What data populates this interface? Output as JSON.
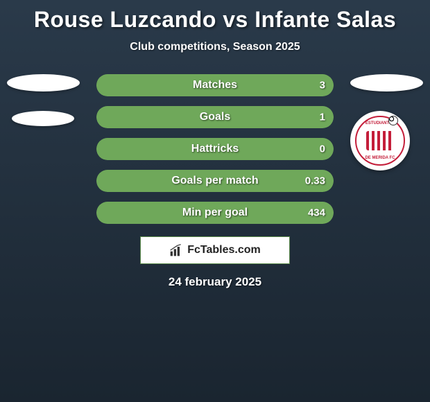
{
  "header": {
    "title": "Rouse Luzcando vs Infante Salas",
    "subtitle": "Club competitions, Season 2025"
  },
  "colors": {
    "bar_bg": "#5a8a4a",
    "bar_fill": "#6fa85a",
    "background_top": "#2a3a4a",
    "background_bottom": "#1a2530",
    "text": "#ffffff",
    "badge_red": "#c41e3a"
  },
  "stats": [
    {
      "label": "Matches",
      "right_value": "3",
      "fill_from": "left",
      "fill_pct": 100
    },
    {
      "label": "Goals",
      "right_value": "1",
      "fill_from": "left",
      "fill_pct": 100
    },
    {
      "label": "Hattricks",
      "right_value": "0",
      "fill_from": "left",
      "fill_pct": 100
    },
    {
      "label": "Goals per match",
      "right_value": "0.33",
      "fill_from": "left",
      "fill_pct": 100
    },
    {
      "label": "Min per goal",
      "right_value": "434",
      "fill_from": "left",
      "fill_pct": 100
    }
  ],
  "logo": {
    "text": "FcTables.com"
  },
  "date": "24 february 2025",
  "club_badge": {
    "top_text": "ESTUDIANTES",
    "bottom_text": "DE MERIDA FC"
  }
}
